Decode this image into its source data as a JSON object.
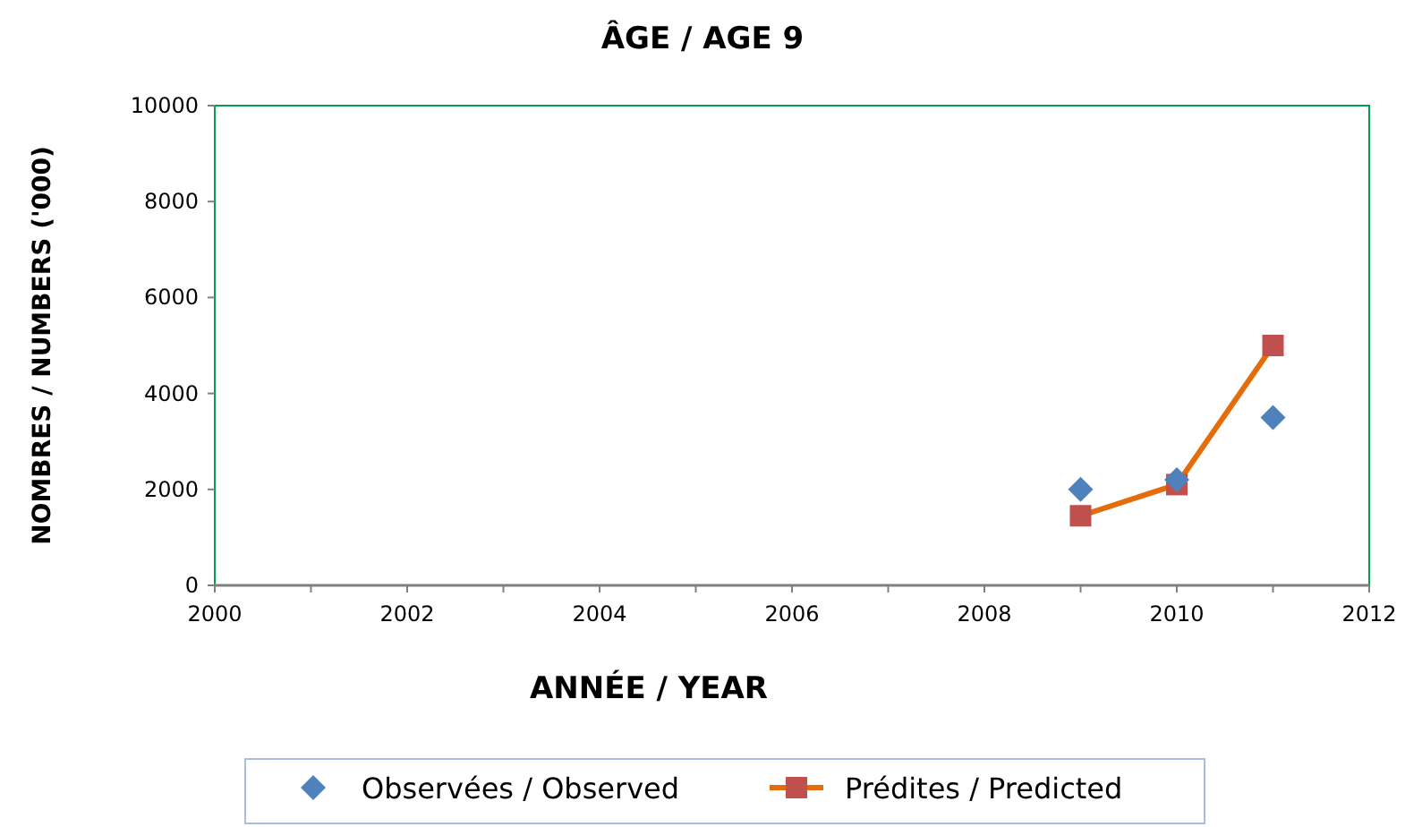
{
  "chart_data": {
    "type": "scatter",
    "title": "ÂGE / AGE 9",
    "xlabel": "ANNÉE / YEAR",
    "ylabel": "NOMBRES  /  NUMBERS ('000)",
    "xlim": [
      2000,
      2012
    ],
    "xticks": [
      2000,
      {
        "value": 2001,
        "label": null
      },
      2002,
      {
        "value": 2003,
        "label": null
      },
      2004,
      {
        "value": 2005,
        "label": null
      },
      2006,
      {
        "value": 2007,
        "label": null
      },
      2008,
      {
        "value": 2009,
        "label": null
      },
      2010,
      {
        "value": 2011,
        "label": null
      },
      2012
    ],
    "ylim": [
      0,
      10000
    ],
    "yticks": [
      0,
      2000,
      4000,
      6000,
      8000,
      10000
    ],
    "grid": false,
    "legend": "bottom",
    "series": [
      {
        "name": "Observées / Observed",
        "marker": "diamond",
        "color": "#4f81bd",
        "x": [
          2009,
          2010,
          2011
        ],
        "values": [
          2000,
          2200,
          3500
        ]
      },
      {
        "name": "Prédites / Predicted",
        "type": "line",
        "marker": "square",
        "line_style": "solid",
        "color": "#e46c0a",
        "x": [
          2009,
          2010,
          2011
        ],
        "values": [
          1450,
          2100,
          5000
        ]
      }
    ]
  }
}
